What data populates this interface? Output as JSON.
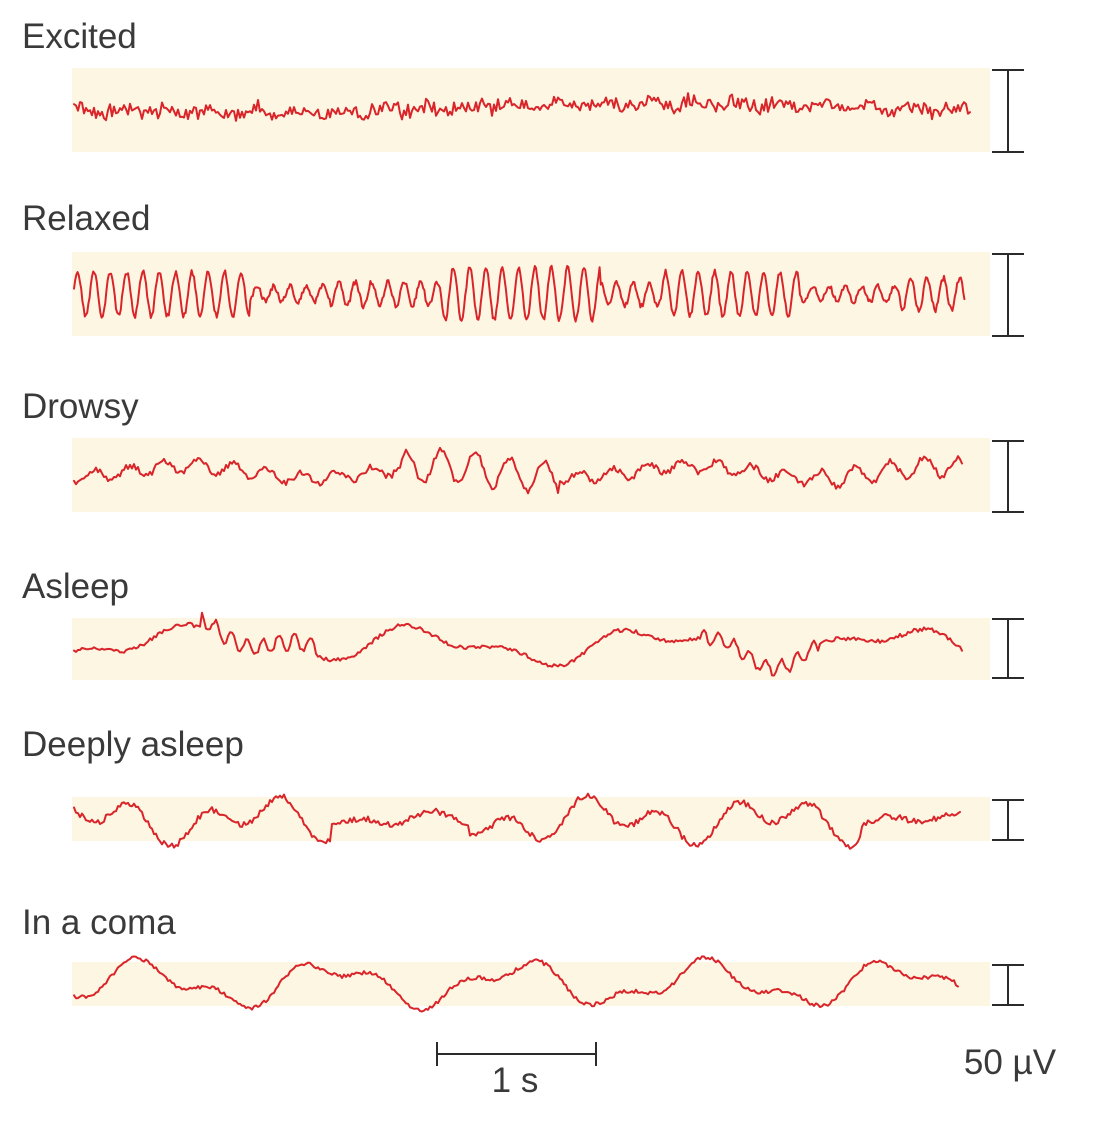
{
  "states": [
    {
      "label": "Excited",
      "scale_bar": "1.0",
      "rhythm": "fast-low-amplitude"
    },
    {
      "label": "Relaxed",
      "scale_bar": "1.0",
      "rhythm": "alpha"
    },
    {
      "label": "Drowsy",
      "scale_bar": "0.88",
      "rhythm": "theta"
    },
    {
      "label": "Asleep",
      "scale_bar": "0.7",
      "rhythm": "spindles"
    },
    {
      "label": "Deeply asleep",
      "scale_bar": "0.45",
      "rhythm": "delta"
    },
    {
      "label": "In a coma",
      "scale_bar": "0.45",
      "rhythm": "slow"
    }
  ],
  "time_scale_label": "1 s",
  "voltage_scale_label": "50 µV",
  "colors": {
    "trace": "#d9252a",
    "band": "#fdf6e3",
    "text": "#3a3a3a",
    "bar": "#2b2b2b"
  }
}
